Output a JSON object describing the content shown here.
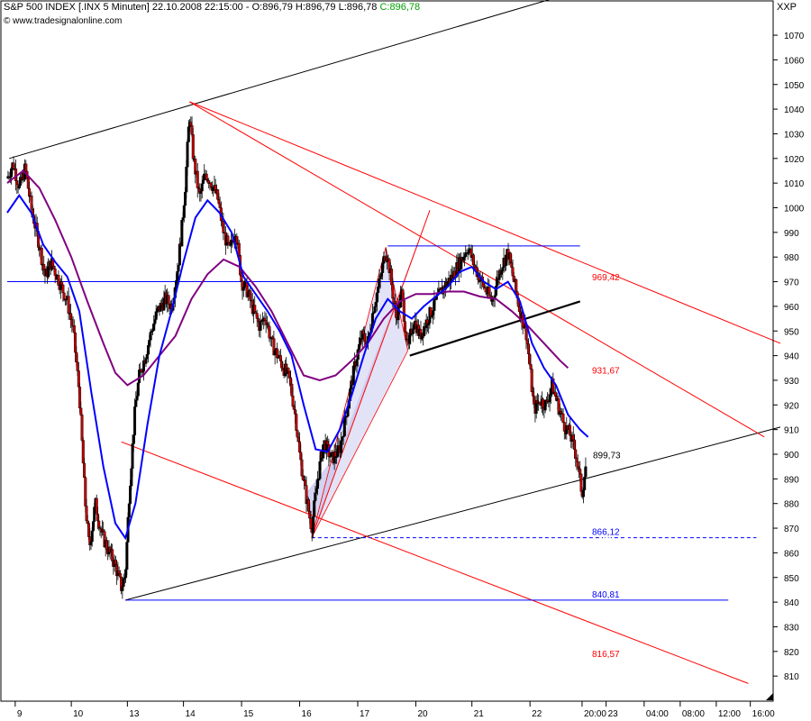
{
  "header": {
    "title_prefix": "S&P 500 INDEX [.INX  5 Minuten] 22.10.2008 22:15:00 - O:896,79 H:896,79 L:896,78",
    "close_text": "C:896,78",
    "site": "© www.tradesignalonline.com"
  },
  "symbol_label": "XXP",
  "colors": {
    "candle_up": "#000000",
    "candle_down": "#c00000",
    "ma_fast": "#0000ff",
    "ma_slow": "#800080",
    "trend_red": "#ff0000",
    "support_blue": "#0000ff",
    "channel_black": "#000000",
    "triangle_fill": "#c8c8f0",
    "projection": "#ffffff"
  },
  "chart_data": {
    "type": "candlestick",
    "title": "S&P 500 INDEX [.INX  5 Minuten]",
    "ylim": [
      800,
      1080
    ],
    "y_ticks": [
      810,
      820,
      830,
      840,
      850,
      860,
      870,
      880,
      890,
      900,
      910,
      920,
      930,
      940,
      950,
      960,
      970,
      980,
      990,
      1000,
      1010,
      1020,
      1030,
      1040,
      1050,
      1060,
      1070
    ],
    "x_ticks": [
      {
        "label": "9",
        "t": 0.2
      },
      {
        "label": "10",
        "t": 1.6
      },
      {
        "label": "13",
        "t": 3.0
      },
      {
        "label": "14",
        "t": 4.4
      },
      {
        "label": "15",
        "t": 5.85
      },
      {
        "label": "16",
        "t": 7.3
      },
      {
        "label": "17",
        "t": 8.75
      },
      {
        "label": "20",
        "t": 10.2
      },
      {
        "label": "21",
        "t": 11.6
      },
      {
        "label": "22",
        "t": 13.05
      },
      {
        "label": "20:00",
        "t": 14.35
      },
      {
        "label": "23",
        "t": 14.95
      },
      {
        "label": "04:00",
        "t": 15.9
      },
      {
        "label": "08:00",
        "t": 16.8
      },
      {
        "label": "12:00",
        "t": 17.7
      },
      {
        "label": "16:00",
        "t": 18.55
      }
    ],
    "x_range": [
      0,
      19.3
    ],
    "price_path": [
      [
        0.0,
        1012
      ],
      [
        0.15,
        1018
      ],
      [
        0.3,
        1008
      ],
      [
        0.45,
        1016
      ],
      [
        0.6,
        1000
      ],
      [
        0.8,
        985
      ],
      [
        0.95,
        972
      ],
      [
        1.1,
        978
      ],
      [
        1.3,
        970
      ],
      [
        1.5,
        962
      ],
      [
        1.65,
        950
      ],
      [
        1.8,
        925
      ],
      [
        1.95,
        880
      ],
      [
        2.05,
        862
      ],
      [
        2.2,
        880
      ],
      [
        2.35,
        868
      ],
      [
        2.5,
        862
      ],
      [
        2.7,
        855
      ],
      [
        2.85,
        846
      ],
      [
        2.95,
        851
      ],
      [
        3.05,
        885
      ],
      [
        3.2,
        920
      ],
      [
        3.3,
        932
      ],
      [
        3.45,
        940
      ],
      [
        3.6,
        950
      ],
      [
        3.75,
        958
      ],
      [
        3.95,
        963
      ],
      [
        4.1,
        960
      ],
      [
        4.25,
        975
      ],
      [
        4.35,
        990
      ],
      [
        4.45,
        1010
      ],
      [
        4.55,
        1038
      ],
      [
        4.65,
        1020
      ],
      [
        4.8,
        1004
      ],
      [
        4.95,
        1014
      ],
      [
        5.1,
        1010
      ],
      [
        5.25,
        1004
      ],
      [
        5.4,
        990
      ],
      [
        5.55,
        982
      ],
      [
        5.7,
        992
      ],
      [
        5.85,
        970
      ],
      [
        6.0,
        966
      ],
      [
        6.15,
        958
      ],
      [
        6.3,
        952
      ],
      [
        6.45,
        956
      ],
      [
        6.6,
        945
      ],
      [
        6.75,
        940
      ],
      [
        6.9,
        935
      ],
      [
        7.05,
        930
      ],
      [
        7.2,
        915
      ],
      [
        7.3,
        900
      ],
      [
        7.45,
        884
      ],
      [
        7.6,
        870
      ],
      [
        7.75,
        890
      ],
      [
        7.9,
        905
      ],
      [
        8.1,
        898
      ],
      [
        8.3,
        902
      ],
      [
        8.5,
        920
      ],
      [
        8.7,
        938
      ],
      [
        8.85,
        948
      ],
      [
        9.0,
        945
      ],
      [
        9.15,
        960
      ],
      [
        9.3,
        970
      ],
      [
        9.45,
        983
      ],
      [
        9.55,
        975
      ],
      [
        9.7,
        955
      ],
      [
        9.85,
        965
      ],
      [
        10.0,
        942
      ],
      [
        10.15,
        955
      ],
      [
        10.3,
        948
      ],
      [
        10.5,
        955
      ],
      [
        10.7,
        962
      ],
      [
        10.9,
        968
      ],
      [
        11.1,
        972
      ],
      [
        11.3,
        978
      ],
      [
        11.5,
        984
      ],
      [
        11.7,
        975
      ],
      [
        11.9,
        968
      ],
      [
        12.1,
        962
      ],
      [
        12.3,
        975
      ],
      [
        12.5,
        982
      ],
      [
        12.65,
        970
      ],
      [
        12.8,
        958
      ],
      [
        12.95,
        950
      ],
      [
        13.05,
        935
      ],
      [
        13.15,
        918
      ],
      [
        13.3,
        922
      ],
      [
        13.45,
        920
      ],
      [
        13.6,
        928
      ],
      [
        13.75,
        920
      ],
      [
        13.9,
        912
      ],
      [
        14.05,
        908
      ],
      [
        14.2,
        900
      ],
      [
        14.35,
        884
      ],
      [
        14.45,
        896
      ]
    ],
    "ma_fast": [
      [
        0.0,
        998
      ],
      [
        0.3,
        1005
      ],
      [
        0.6,
        998
      ],
      [
        0.9,
        985
      ],
      [
        1.2,
        978
      ],
      [
        1.5,
        972
      ],
      [
        1.8,
        958
      ],
      [
        2.1,
        925
      ],
      [
        2.4,
        895
      ],
      [
        2.7,
        872
      ],
      [
        2.95,
        866
      ],
      [
        3.2,
        880
      ],
      [
        3.5,
        912
      ],
      [
        3.8,
        940
      ],
      [
        4.1,
        958
      ],
      [
        4.4,
        978
      ],
      [
        4.7,
        996
      ],
      [
        5.0,
        1003
      ],
      [
        5.3,
        998
      ],
      [
        5.6,
        990
      ],
      [
        5.9,
        972
      ],
      [
        6.2,
        965
      ],
      [
        6.5,
        958
      ],
      [
        6.8,
        950
      ],
      [
        7.1,
        940
      ],
      [
        7.4,
        920
      ],
      [
        7.7,
        902
      ],
      [
        8.0,
        901
      ],
      [
        8.3,
        910
      ],
      [
        8.6,
        924
      ],
      [
        8.9,
        940
      ],
      [
        9.2,
        955
      ],
      [
        9.5,
        963
      ],
      [
        9.8,
        958
      ],
      [
        10.1,
        955
      ],
      [
        10.4,
        960
      ],
      [
        10.7,
        964
      ],
      [
        11.0,
        968
      ],
      [
        11.3,
        974
      ],
      [
        11.6,
        976
      ],
      [
        11.9,
        970
      ],
      [
        12.2,
        967
      ],
      [
        12.5,
        970
      ],
      [
        12.8,
        962
      ],
      [
        13.1,
        945
      ],
      [
        13.4,
        935
      ],
      [
        13.7,
        928
      ],
      [
        14.0,
        916
      ],
      [
        14.3,
        910
      ],
      [
        14.5,
        907
      ]
    ],
    "ma_slow": [
      [
        0.0,
        1010
      ],
      [
        0.4,
        1015
      ],
      [
        0.8,
        1008
      ],
      [
        1.2,
        995
      ],
      [
        1.6,
        980
      ],
      [
        2.0,
        962
      ],
      [
        2.4,
        945
      ],
      [
        2.7,
        933
      ],
      [
        3.0,
        928
      ],
      [
        3.4,
        932
      ],
      [
        3.8,
        940
      ],
      [
        4.2,
        948
      ],
      [
        4.6,
        963
      ],
      [
        5.0,
        973
      ],
      [
        5.4,
        979
      ],
      [
        5.8,
        976
      ],
      [
        6.2,
        968
      ],
      [
        6.6,
        958
      ],
      [
        7.0,
        945
      ],
      [
        7.4,
        932
      ],
      [
        7.8,
        930
      ],
      [
        8.2,
        932
      ],
      [
        8.6,
        938
      ],
      [
        9.0,
        945
      ],
      [
        9.4,
        955
      ],
      [
        9.8,
        962
      ],
      [
        10.2,
        965
      ],
      [
        10.6,
        965
      ],
      [
        11.0,
        966
      ],
      [
        11.4,
        966
      ],
      [
        11.8,
        964
      ],
      [
        12.2,
        963
      ],
      [
        12.6,
        958
      ],
      [
        13.0,
        952
      ],
      [
        13.4,
        945
      ],
      [
        13.8,
        938
      ],
      [
        14.0,
        935
      ]
    ],
    "annotations": [
      {
        "label": "969,42",
        "value": 969.42,
        "color": "#ff0000"
      },
      {
        "label": "931,67",
        "value": 931.67,
        "color": "#ff0000"
      },
      {
        "label": "899,73",
        "value": 899.73,
        "color": "#000000"
      },
      {
        "label": "866,12",
        "value": 866.12,
        "color": "#0000ff"
      },
      {
        "label": "840,81",
        "value": 840.81,
        "color": "#0000ff"
      },
      {
        "label": "816,57",
        "value": 816.57,
        "color": "#ff0000"
      }
    ],
    "trendlines": [
      {
        "color": "#000000",
        "from": [
          0.05,
          1020
        ],
        "to": [
          19.3,
          1112
        ]
      },
      {
        "color": "#000000",
        "from": [
          2.95,
          840.8
        ],
        "to": [
          19.3,
          911
        ]
      },
      {
        "color": "#ff0000",
        "from": [
          4.55,
          1043
        ],
        "to": [
          19.3,
          945
        ]
      },
      {
        "color": "#ff0000",
        "from": [
          4.55,
          1043
        ],
        "to": [
          18.9,
          907
        ]
      },
      {
        "color": "#ff0000",
        "from": [
          2.85,
          905
        ],
        "to": [
          18.5,
          807
        ]
      },
      {
        "color": "#ff0000",
        "from": [
          7.6,
          866.1
        ],
        "to": [
          10.55,
          999
        ]
      },
      {
        "color": "#0000ff",
        "from": [
          9.5,
          984.5
        ],
        "to": [
          14.3,
          984.5
        ]
      },
      {
        "color": "#0000ff",
        "from": [
          0.0,
          970
        ],
        "to": [
          11.3,
          970
        ]
      },
      {
        "color": "#0000ff",
        "from": [
          2.95,
          840.8
        ],
        "to": [
          18.0,
          840.8
        ]
      },
      {
        "color": "#000000",
        "from": [
          10.05,
          940
        ],
        "to": [
          14.3,
          962
        ]
      }
    ]
  }
}
